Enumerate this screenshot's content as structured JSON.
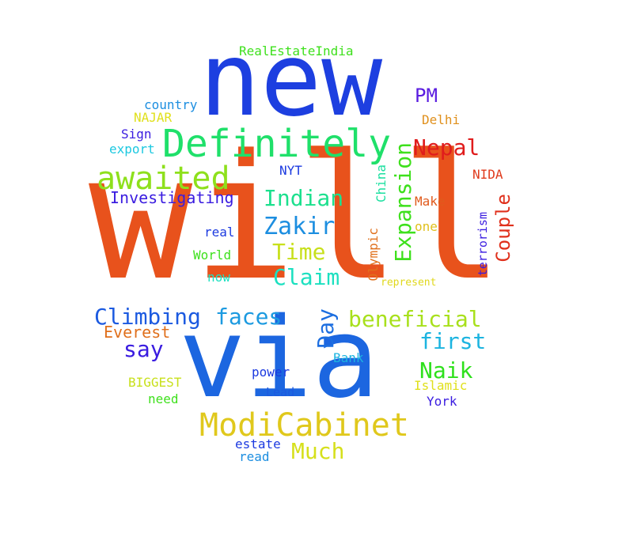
{
  "words": [
    {
      "text": "will",
      "color": "#e8521c"
    },
    {
      "text": "new",
      "color": "#1d3fe0"
    },
    {
      "text": "via",
      "color": "#1c66e0"
    },
    {
      "text": "Definitely",
      "color": "#1fe06a"
    },
    {
      "text": "awaited",
      "color": "#8ee01c"
    },
    {
      "text": "ModiCabinet",
      "color": "#e0c81c"
    },
    {
      "text": "Expansion",
      "color": "#3ee01c"
    },
    {
      "text": "Zakir",
      "color": "#1c8ee0"
    },
    {
      "text": "Indian",
      "color": "#1ce08e"
    },
    {
      "text": "Time",
      "color": "#c8e01c"
    },
    {
      "text": "Claim",
      "color": "#1ce0c0"
    },
    {
      "text": "Climbing",
      "color": "#1c5ae0"
    },
    {
      "text": "faces",
      "color": "#1c9ae0"
    },
    {
      "text": "beneficial",
      "color": "#a8e01c"
    },
    {
      "text": "first",
      "color": "#1cb4e0"
    },
    {
      "text": "Nepal",
      "color": "#e01c1c"
    },
    {
      "text": "Couple",
      "color": "#e0301c"
    },
    {
      "text": "Naik",
      "color": "#2ee01c"
    },
    {
      "text": "Day",
      "color": "#1c6ee0"
    },
    {
      "text": "say",
      "color": "#3a1ce0"
    },
    {
      "text": "Much",
      "color": "#d6e01c"
    },
    {
      "text": "PM",
      "color": "#5a1ce0"
    },
    {
      "text": "Investigating",
      "color": "#3a1ce0"
    },
    {
      "text": "Everest",
      "color": "#e0701c"
    },
    {
      "text": "RealEstateIndia",
      "color": "#3ee01c"
    },
    {
      "text": "country",
      "color": "#1c8ee0"
    },
    {
      "text": "NAJAR",
      "color": "#e0e01c"
    },
    {
      "text": "Sign",
      "color": "#3a1ce0"
    },
    {
      "text": "export",
      "color": "#1cc8e0"
    },
    {
      "text": "Delhi",
      "color": "#e0901c"
    },
    {
      "text": "NIDA",
      "color": "#e03a1c"
    },
    {
      "text": "Make",
      "color": "#e05a1c"
    },
    {
      "text": "one",
      "color": "#e0c01c"
    },
    {
      "text": "China",
      "color": "#1ce0a0"
    },
    {
      "text": "Olympic",
      "color": "#e0701c"
    },
    {
      "text": "terrorism",
      "color": "#3a1ce0"
    },
    {
      "text": "represent",
      "color": "#e0d81c"
    },
    {
      "text": "NYT",
      "color": "#1c3ae0"
    },
    {
      "text": "real",
      "color": "#1c3ae0"
    },
    {
      "text": "World",
      "color": "#3ee01c"
    },
    {
      "text": "now",
      "color": "#1ce0c0"
    },
    {
      "text": "Bank",
      "color": "#1cb4e0"
    },
    {
      "text": "power",
      "color": "#1c3ae0"
    },
    {
      "text": "Lead",
      "color": "#1c5ae0"
    },
    {
      "text": "Islamic",
      "color": "#e0e01c"
    },
    {
      "text": "York",
      "color": "#3a1ce0"
    },
    {
      "text": "BIGGEST",
      "color": "#c8e01c"
    },
    {
      "text": "need",
      "color": "#3ee01c"
    },
    {
      "text": "estate",
      "color": "#1c3ae0"
    },
    {
      "text": "read",
      "color": "#1c8ee0"
    }
  ]
}
